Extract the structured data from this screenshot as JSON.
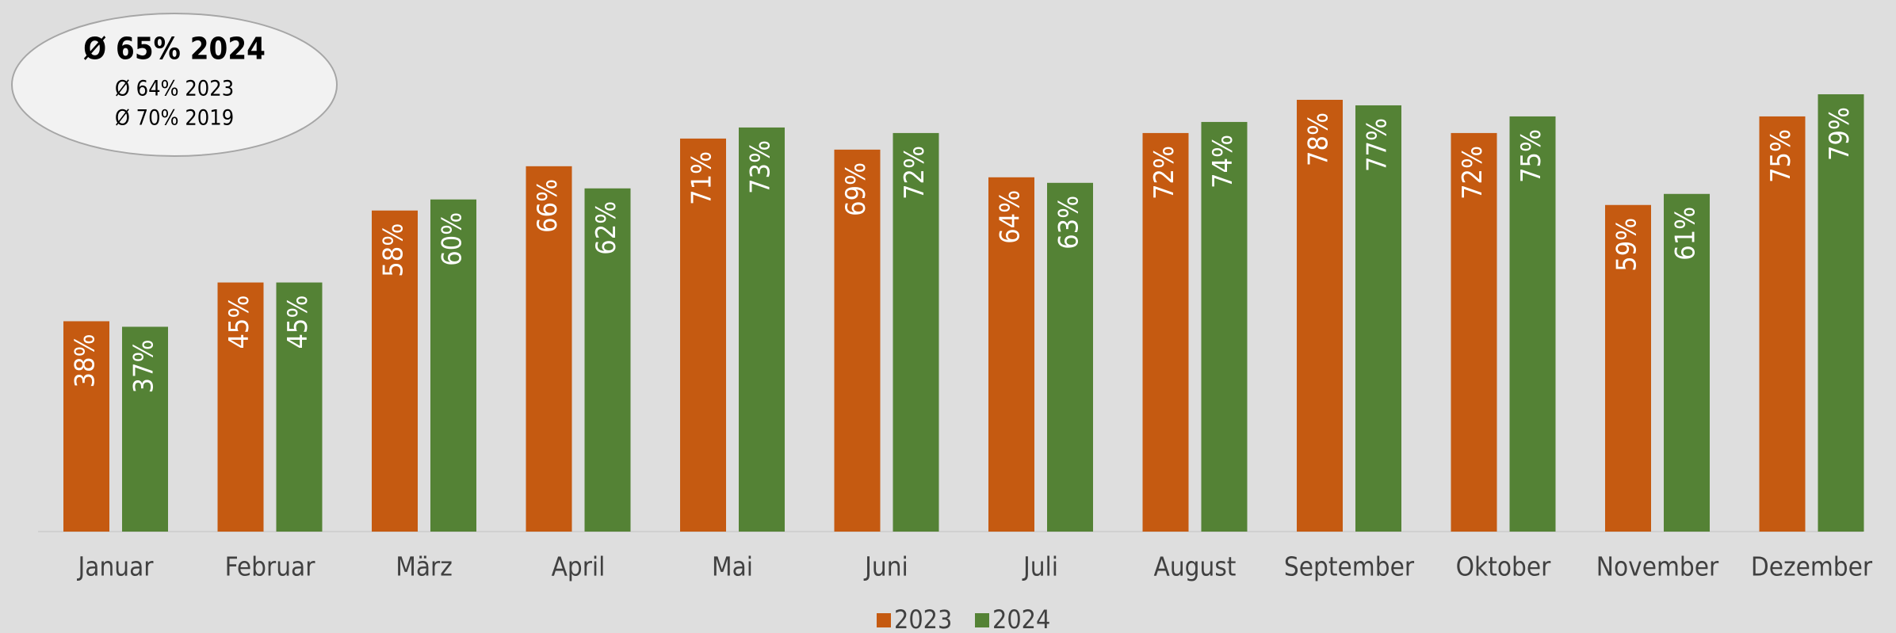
{
  "chart_data": {
    "type": "bar",
    "annotations": [
      "Ø 65% 2024",
      "Ø 64% 2023",
      "Ø 70% 2019"
    ],
    "categories": [
      "Januar",
      "Februar",
      "März",
      "April",
      "Mai",
      "Juni",
      "Juli",
      "August",
      "September",
      "Oktober",
      "November",
      "Dezember"
    ],
    "series": [
      {
        "name": "2023",
        "color": "#c55a11",
        "values": [
          38,
          45,
          58,
          66,
          71,
          69,
          64,
          72,
          78,
          72,
          59,
          75
        ],
        "value_labels": [
          "38%",
          "45%",
          "58%",
          "66%",
          "71%",
          "69%",
          "64%",
          "72%",
          "78%",
          "72%",
          "59%",
          "75%"
        ]
      },
      {
        "name": "2024",
        "color": "#548235",
        "values": [
          37,
          45,
          60,
          62,
          73,
          72,
          63,
          74,
          77,
          75,
          61,
          79
        ],
        "value_labels": [
          "37%",
          "45%",
          "60%",
          "62%",
          "73%",
          "72%",
          "63%",
          "74%",
          "77%",
          "75%",
          "61%",
          "79%"
        ]
      }
    ],
    "legend": "bottom"
  }
}
